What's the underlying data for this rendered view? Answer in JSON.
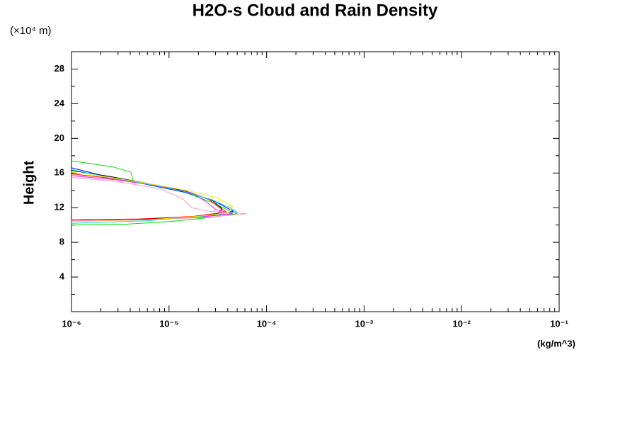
{
  "chart_data": {
    "type": "line",
    "title": "H2O-s Cloud and Rain Density",
    "y_unit": "(×10⁴ m)",
    "ylabel": "Height",
    "xlabel": "(kg/m^3)",
    "xscale": "log",
    "xlim": [
      1e-06,
      0.1
    ],
    "xticks": [
      {
        "value": 1e-06,
        "label": "10⁻⁶"
      },
      {
        "value": 1e-05,
        "label": "10⁻⁵"
      },
      {
        "value": 0.0001,
        "label": "10⁻⁴"
      },
      {
        "value": 0.001,
        "label": "10⁻³"
      },
      {
        "value": 0.01,
        "label": "10⁻²"
      },
      {
        "value": 0.1,
        "label": "10⁻¹"
      }
    ],
    "ylim": [
      0,
      30
    ],
    "yticks": [
      4,
      8,
      12,
      16,
      20,
      24,
      28
    ],
    "series": [
      {
        "color": "#00dd00",
        "x": [
          1e-06,
          2.68e-06,
          4.07e-06,
          4.28e-06,
          7.3e-06,
          1.43e-05,
          2.78e-05,
          4.22e-05,
          4.99e-05,
          2.78e-05,
          1.02e-05,
          3.74e-06,
          1e-06
        ],
        "y": [
          17.4,
          16.7,
          16.1,
          15.1,
          14.5,
          13.8,
          12.6,
          11.6,
          11.3,
          10.9,
          10.4,
          10.1,
          10.0
        ]
      },
      {
        "color": "#0000ff",
        "x": [
          1e-06,
          2.27e-06,
          5.23e-06,
          1.43e-05,
          2.78e-05,
          3.88e-05,
          4.59e-05,
          3.29e-05,
          1.21e-05,
          3.74e-06,
          1e-06
        ],
        "y": [
          16.6,
          15.6,
          14.8,
          13.8,
          12.9,
          12.0,
          11.6,
          11.2,
          10.8,
          10.6,
          10.5
        ]
      },
      {
        "color": "#000000",
        "x": [
          1e-06,
          2.5e-06,
          6e-06,
          1.5e-05,
          2.8e-05,
          3.5e-05,
          3.2e-05,
          1.5e-05,
          4e-06,
          1e-06
        ],
        "y": [
          16.3,
          15.6,
          14.8,
          13.9,
          12.8,
          11.9,
          11.3,
          10.9,
          10.6,
          10.5
        ]
      },
      {
        "color": "#ff0000",
        "x": [
          1e-06,
          3e-06,
          7e-06,
          1.6e-05,
          2.6e-05,
          3.3e-05,
          3.9e-05,
          1.8e-05,
          5e-06,
          1e-06
        ],
        "y": [
          15.9,
          15.3,
          14.6,
          13.8,
          12.9,
          12.0,
          11.5,
          11.0,
          10.7,
          10.6
        ]
      },
      {
        "color": "#ff00ff",
        "x": [
          1e-06,
          3e-06,
          8e-06,
          1.7e-05,
          2.4e-05,
          3e-05,
          4.5e-05,
          2e-05,
          6e-06,
          1e-06
        ],
        "y": [
          15.7,
          15.2,
          14.5,
          13.7,
          12.7,
          11.8,
          11.3,
          10.9,
          10.6,
          10.5
        ]
      },
      {
        "color": "#00dddd",
        "x": [
          1e-06,
          2.2e-06,
          5.5e-06,
          1.4e-05,
          2.9e-05,
          4.2e-05,
          5e-05,
          2.2e-05,
          6e-06,
          1e-06
        ],
        "y": [
          16.4,
          15.6,
          14.8,
          13.9,
          12.8,
          12.0,
          11.5,
          11.0,
          10.5,
          10.2
        ]
      },
      {
        "color": "#eeee00",
        "x": [
          1e-06,
          2.5e-06,
          6e-06,
          1.5e-05,
          3e-05,
          4.5e-05,
          4e-05,
          2e-05,
          6e-06,
          1e-06
        ],
        "y": [
          16.1,
          15.5,
          14.8,
          14.0,
          13.2,
          12.2,
          11.4,
          11.0,
          10.6,
          10.4
        ]
      },
      {
        "color": "#ff99bb",
        "x": [
          1e-06,
          3e-06,
          8e-06,
          1.4e-05,
          1.7e-05,
          2.5e-05,
          6.3e-05,
          2.5e-05,
          7e-06,
          1e-06
        ],
        "y": [
          15.5,
          15.0,
          14.2,
          13.0,
          12.0,
          11.6,
          11.3,
          10.9,
          10.6,
          10.5
        ]
      }
    ]
  }
}
